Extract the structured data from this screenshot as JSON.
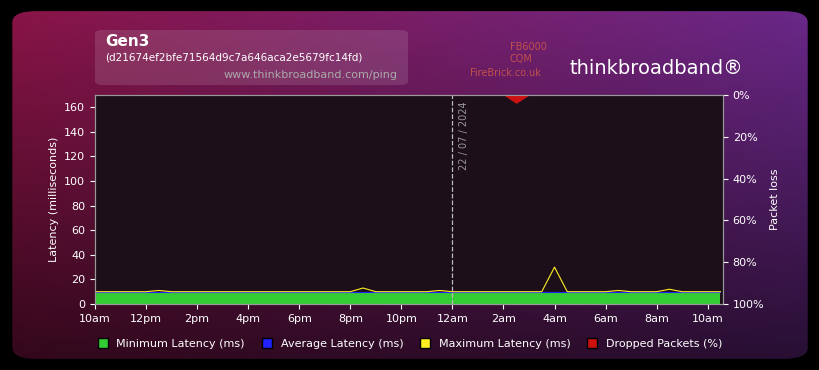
{
  "chart_data": {
    "type": "line",
    "title": "Gen3",
    "subtitle": "(d21674ef2bfe71564d9c7a646aca2e5679fc14fd)",
    "source": "www.thinkbroadband.com/ping",
    "logos": [
      "FB6000",
      "CQM",
      "FireBrick.co.uk",
      "thinkbroadband®"
    ],
    "marker_line": {
      "x": 14,
      "label": "22 / 07 / 2024"
    },
    "y_label": "Latency (milliseconds)",
    "y2_label": "Packet loss",
    "x": [
      0,
      0.5,
      1,
      1.5,
      2,
      2.5,
      3,
      3.5,
      4,
      4.5,
      5,
      5.5,
      6,
      6.5,
      7,
      7.5,
      8,
      8.5,
      9,
      9.5,
      10,
      10.5,
      11,
      11.5,
      12,
      12.5,
      13,
      13.5,
      14,
      14.5,
      15,
      15.5,
      16,
      16.5,
      17,
      17.5,
      18,
      18.5,
      19,
      19.5,
      20,
      20.5,
      21,
      21.5,
      22,
      22.5,
      23,
      23.5,
      24,
      24.5
    ],
    "xlim": [
      0,
      24.6
    ],
    "xticks": [
      {
        "value": 0,
        "label": "10am"
      },
      {
        "value": 2,
        "label": "12pm"
      },
      {
        "value": 4,
        "label": "2pm"
      },
      {
        "value": 6,
        "label": "4pm"
      },
      {
        "value": 8,
        "label": "6pm"
      },
      {
        "value": 10,
        "label": "8pm"
      },
      {
        "value": 12,
        "label": "10pm"
      },
      {
        "value": 14,
        "label": "12am"
      },
      {
        "value": 16,
        "label": "2am"
      },
      {
        "value": 18,
        "label": "4am"
      },
      {
        "value": 20,
        "label": "6am"
      },
      {
        "value": 22,
        "label": "8am"
      },
      {
        "value": 24,
        "label": "10am"
      }
    ],
    "ylim": [
      0,
      170
    ],
    "yticks": [
      0,
      20,
      40,
      60,
      80,
      100,
      120,
      140,
      160
    ],
    "y2lim": [
      100,
      0
    ],
    "y2ticks": [
      {
        "value": 0,
        "label": "0%"
      },
      {
        "value": 20,
        "label": "20%"
      },
      {
        "value": 40,
        "label": "40%"
      },
      {
        "value": 60,
        "label": "60%"
      },
      {
        "value": 80,
        "label": "80%"
      },
      {
        "value": 100,
        "label": "100%"
      }
    ],
    "grid": false,
    "legend": "lower center",
    "series": [
      {
        "name": "Minimum Latency (ms)",
        "color": "#33cc33",
        "type": "area",
        "values": [
          9,
          9,
          9,
          9,
          9,
          9,
          9,
          9,
          9,
          9,
          9,
          9,
          9,
          9,
          9,
          9,
          9,
          9,
          9,
          9,
          9,
          9,
          9,
          9,
          9,
          9,
          9,
          9,
          9,
          9,
          9,
          9,
          9,
          9,
          9,
          9,
          9,
          9,
          9,
          9,
          9,
          9,
          9,
          9,
          9,
          9,
          9,
          9,
          9,
          9
        ]
      },
      {
        "name": "Average Latency (ms)",
        "color": "#2222ff",
        "type": "line",
        "values": [
          9.5,
          9.5,
          9.5,
          9.5,
          9.5,
          9.5,
          9.5,
          9.5,
          9.5,
          9.5,
          9.5,
          9.5,
          9.5,
          9.5,
          9.5,
          9.5,
          9.5,
          9.5,
          9.5,
          9.5,
          9.5,
          9.5,
          9.5,
          9.5,
          9.5,
          9.5,
          9.5,
          9.5,
          9.5,
          9.5,
          9.5,
          9.5,
          9.5,
          9.5,
          9.5,
          9.5,
          9.5,
          9.5,
          9.5,
          9.5,
          9.5,
          9.5,
          9.5,
          9.5,
          9.5,
          9.5,
          9.5,
          9.5,
          9.5,
          9.5
        ]
      },
      {
        "name": "Maximum Latency (ms)",
        "color": "#ffee22",
        "type": "line",
        "values": [
          10,
          10,
          10,
          10,
          10,
          11,
          10,
          10,
          10,
          10,
          10,
          10,
          10,
          10,
          10,
          10,
          10,
          10,
          10,
          10,
          10,
          13,
          10,
          10,
          10,
          10,
          10,
          11,
          10,
          10,
          10,
          10,
          10,
          10,
          10,
          10,
          30,
          10,
          10,
          10,
          10,
          11,
          10,
          10,
          10,
          12,
          10,
          10,
          10,
          10
        ]
      },
      {
        "name": "Dropped Packets (%)",
        "color": "#cc1111",
        "type": "area",
        "axis": "y2",
        "values": [
          0,
          0,
          0,
          0,
          0,
          0,
          0,
          0,
          0,
          0,
          0,
          0,
          0,
          0,
          0,
          0,
          0,
          0,
          0,
          0,
          0,
          0,
          0,
          0,
          0,
          0,
          0,
          0,
          0,
          0,
          0,
          0,
          0,
          4,
          0,
          0,
          0,
          0,
          0,
          0,
          0,
          0,
          0,
          0,
          0,
          0,
          0,
          0,
          0,
          0
        ]
      }
    ]
  }
}
